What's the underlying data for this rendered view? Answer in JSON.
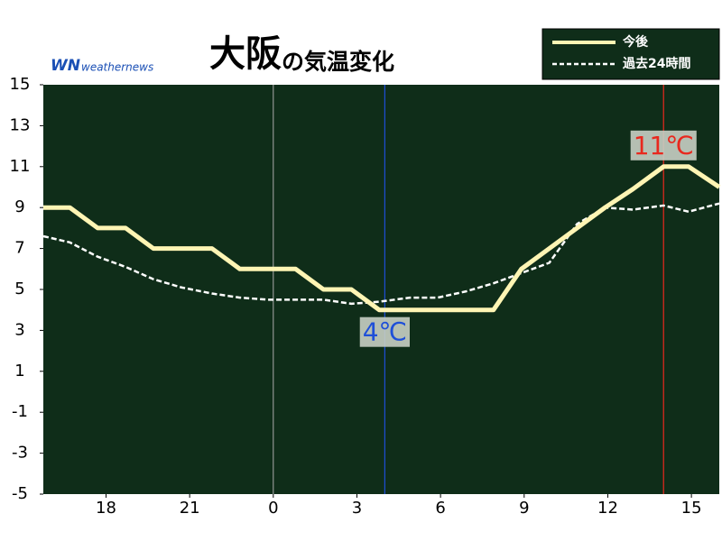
{
  "chart_data": {
    "type": "line",
    "brand": {
      "mark": "WN",
      "name": "weathernews"
    },
    "title": "大阪",
    "subtitle": "の気温変化",
    "x": [
      15.75,
      16.7,
      17.7,
      18.7,
      19.7,
      20.7,
      21.8,
      22.8,
      23.8,
      24.8,
      25.8,
      26.8,
      27.8,
      28.9,
      29.9,
      30.9,
      31.9,
      32.9,
      33.9,
      34.9,
      35.9,
      36.9,
      38,
      38.9,
      40
    ],
    "series": [
      {
        "name": "今後",
        "color": "#fff5b4",
        "dashed": false,
        "values": [
          9,
          9,
          8,
          8,
          7,
          7,
          7,
          6,
          6,
          6,
          5,
          5,
          4,
          4,
          4,
          4,
          4,
          6,
          7,
          8,
          9,
          9.9,
          11,
          11,
          10
        ]
      },
      {
        "name": "過去24時間",
        "color": "#ffffff",
        "dashed": true,
        "values": [
          7.6,
          7.3,
          6.6,
          6.1,
          5.5,
          5.1,
          4.8,
          4.6,
          4.5,
          4.5,
          4.5,
          4.3,
          4.4,
          4.6,
          4.6,
          4.9,
          5.3,
          5.8,
          6.3,
          8.2,
          9.0,
          8.9,
          9.1,
          8.8,
          9.2
        ]
      }
    ],
    "annotations": [
      {
        "x": 28,
        "y": 4,
        "label": "4℃",
        "color": "#1e4fd8"
      },
      {
        "x": 38,
        "y": 11,
        "label": "11℃",
        "color": "#e8281e"
      }
    ],
    "vline": 24,
    "xlim": [
      15.75,
      40
    ],
    "xticks": [
      18,
      21,
      {
        "value": 24,
        "label": "0"
      },
      {
        "value": 27,
        "label": "3"
      },
      {
        "value": 30,
        "label": "6"
      },
      {
        "value": 33,
        "label": "9"
      },
      {
        "value": 36,
        "label": "12"
      },
      {
        "value": 39,
        "label": "15"
      }
    ],
    "ylim": [
      -5,
      15
    ],
    "yticks": [
      -5,
      -3,
      -1,
      1,
      3,
      5,
      7,
      9,
      11,
      13,
      15
    ],
    "background": "#0f2d19"
  }
}
